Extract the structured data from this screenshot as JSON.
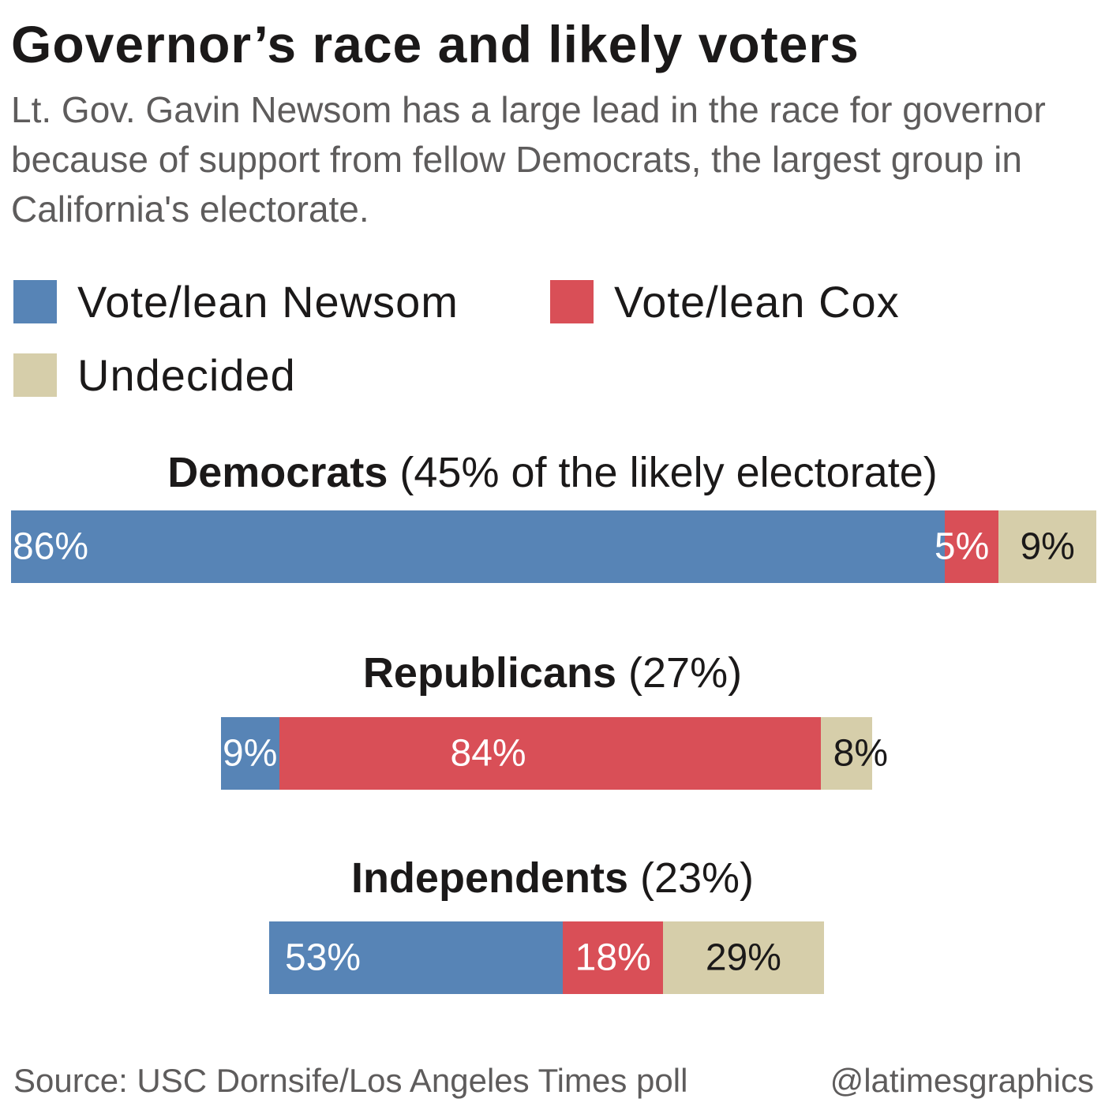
{
  "title": "Governor’s race and likely voters",
  "subtitle": "Lt. Gov. Gavin Newsom has a large lead in the race for governor because of support from fellow Democrats, the largest group in California's electorate.",
  "colors": {
    "newsom": "#5784b6",
    "cox": "#d94f57",
    "undecided": "#d6ceaa"
  },
  "legend": [
    {
      "label": "Vote/lean Newsom",
      "color": "#5784b6"
    },
    {
      "label": "Vote/lean Cox",
      "color": "#d94f57"
    },
    {
      "label": "Undecided",
      "color": "#d6ceaa"
    }
  ],
  "chart_data": {
    "type": "bar",
    "orientation": "horizontal",
    "stacked": true,
    "title": "Governor’s race and likely voters",
    "series_names": [
      "Vote/lean Newsom",
      "Vote/lean Cox",
      "Undecided"
    ],
    "groups": [
      {
        "name": "Democrats",
        "share_label": "(45% of the likely electorate)",
        "electorate_share": 45,
        "values": [
          86,
          5,
          9
        ],
        "labels": [
          "86%",
          "5%",
          "9%"
        ]
      },
      {
        "name": "Republicans",
        "share_label": "(27%)",
        "electorate_share": 27,
        "values": [
          9,
          84,
          8
        ],
        "labels": [
          "9%",
          "84%",
          "8%"
        ]
      },
      {
        "name": "Independents",
        "share_label": "(23%)",
        "electorate_share": 23,
        "values": [
          53,
          18,
          29
        ],
        "labels": [
          "53%",
          "18%",
          "29%"
        ]
      }
    ]
  },
  "footer": {
    "source": "Source: USC Dornsife/Los Angeles Times poll",
    "credit": "@latimesgraphics"
  }
}
